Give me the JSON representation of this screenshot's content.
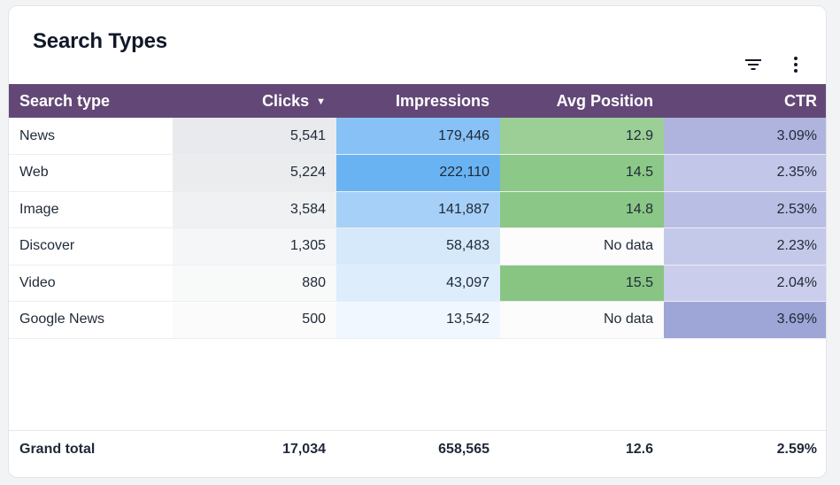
{
  "title": "Search Types",
  "toolbar": {
    "filter_icon": "filter-icon",
    "more_icon": "more-vert-icon"
  },
  "columns": [
    "Search type",
    "Clicks",
    "Impressions",
    "Avg Position",
    "CTR"
  ],
  "sort_indicator": "▼",
  "colors": {
    "header_bg": "#634877"
  },
  "rows": [
    {
      "type": "News",
      "clicks": "5,541",
      "impressions": "179,446",
      "avg_position": "12.9",
      "ctr": "3.09%",
      "bg": {
        "clicks": "#e8eaed",
        "impressions": "#87c1f5",
        "avg_position": "#9bcf96",
        "ctr": "#aeb4de"
      }
    },
    {
      "type": "Web",
      "clicks": "5,224",
      "impressions": "222,110",
      "avg_position": "14.5",
      "ctr": "2.35%",
      "bg": {
        "clicks": "#eaecee",
        "impressions": "#6ab3f2",
        "avg_position": "#8cc887",
        "ctr": "#c2c6e8"
      }
    },
    {
      "type": "Image",
      "clicks": "3,584",
      "impressions": "141,887",
      "avg_position": "14.8",
      "ctr": "2.53%",
      "bg": {
        "clicks": "#eff1f2",
        "impressions": "#a6d0f7",
        "avg_position": "#8bc786",
        "ctr": "#b9bee4"
      }
    },
    {
      "type": "Discover",
      "clicks": "1,305",
      "impressions": "58,483",
      "avg_position": "No data",
      "ctr": "2.23%",
      "bg": {
        "clicks": "#f5f6f7",
        "impressions": "#d6e9fb",
        "avg_position": "#fbfcfb",
        "ctr": "#c5c9e9"
      }
    },
    {
      "type": "Video",
      "clicks": "880",
      "impressions": "43,097",
      "avg_position": "15.5",
      "ctr": "2.04%",
      "bg": {
        "clicks": "#f8f9f9",
        "impressions": "#ddedfc",
        "avg_position": "#88c583",
        "ctr": "#cacdeb"
      }
    },
    {
      "type": "Google News",
      "clicks": "500",
      "impressions": "13,542",
      "avg_position": "No data",
      "ctr": "3.69%",
      "bg": {
        "clicks": "#fbfbfc",
        "impressions": "#f0f7fe",
        "avg_position": "#fbfcfb",
        "ctr": "#9ea5d7"
      }
    }
  ],
  "total": {
    "label": "Grand total",
    "clicks": "17,034",
    "impressions": "658,565",
    "avg_position": "12.6",
    "ctr": "2.59%"
  }
}
